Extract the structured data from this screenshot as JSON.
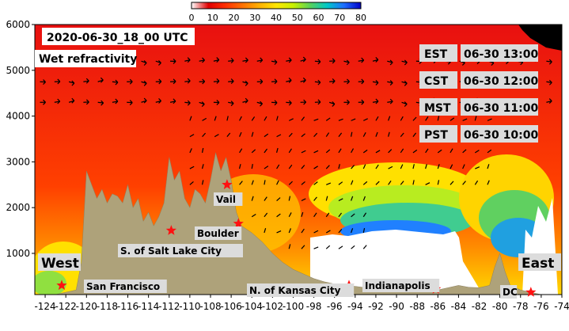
{
  "chart_data": {
    "type": "heatmap",
    "title": "2020-06-30_18_00 UTC",
    "field_label": "Wet refractivity",
    "colorbar": {
      "min": 0,
      "max": 80,
      "ticks": [
        0,
        10,
        20,
        30,
        40,
        50,
        60,
        70,
        80
      ],
      "colors": [
        "#ffffff",
        "#e00000",
        "#ff3000",
        "#ff7000",
        "#ffb000",
        "#ffe600",
        "#c8f000",
        "#5ad25a",
        "#00c8c8",
        "#1e6eff",
        "#0000c8"
      ]
    },
    "x_ticks": [
      -124,
      -122,
      -120,
      -118,
      -116,
      -114,
      -112,
      -110,
      -108,
      -106,
      -104,
      -102,
      -100,
      -98,
      -96,
      -94,
      -92,
      -90,
      -88,
      -86,
      -84,
      -82,
      -80,
      -78,
      -76,
      -74
    ],
    "xlim": [
      -125,
      -74
    ],
    "y_ticks": [
      1000,
      2000,
      3000,
      4000,
      5000,
      6000
    ],
    "ylim": [
      100,
      6000
    ],
    "terrain": {
      "lon": [
        -125,
        -124,
        -123,
        -122,
        -121,
        -120.5,
        -120,
        -119.5,
        -119,
        -118.5,
        -118,
        -117.5,
        -117,
        -116.5,
        -116,
        -115.5,
        -115,
        -114.5,
        -114,
        -113.5,
        -113,
        -112.5,
        -112,
        -111.5,
        -111,
        -110.5,
        -110,
        -109.5,
        -109,
        -108.5,
        -108,
        -107.5,
        -107,
        -106.5,
        -106,
        -105.5,
        -105,
        -104,
        -103,
        -102,
        -101,
        -100,
        -99,
        -98,
        -97,
        -96,
        -95,
        -94,
        -93,
        -92,
        -91,
        -90,
        -89,
        -88,
        -87,
        -86,
        -85,
        -84,
        -83,
        -82,
        -81,
        -80.5,
        -80,
        -79.5,
        -79,
        -78.5,
        -78,
        -77,
        -76,
        -75,
        -74
      ],
      "elev": [
        100,
        100,
        100,
        150,
        200,
        800,
        2800,
        2500,
        2200,
        2400,
        2100,
        2300,
        2250,
        2100,
        2500,
        2000,
        2200,
        1700,
        1900,
        1600,
        1800,
        2100,
        3100,
        2600,
        2800,
        2200,
        2000,
        2400,
        2300,
        2100,
        2600,
        3200,
        2800,
        3100,
        2600,
        1900,
        1600,
        1450,
        1250,
        1000,
        800,
        650,
        550,
        450,
        380,
        330,
        300,
        280,
        250,
        230,
        230,
        210,
        210,
        200,
        190,
        200,
        250,
        300,
        260,
        250,
        300,
        700,
        1000,
        600,
        300,
        250,
        200,
        150,
        100,
        60,
        40
      ]
    },
    "time_zones": [
      {
        "zone": "EST",
        "time": "06-30 13:00"
      },
      {
        "zone": "CST",
        "time": "06-30 12:00"
      },
      {
        "zone": "MST",
        "time": "06-30 11:00"
      },
      {
        "zone": "PST",
        "time": "06-30 10:00"
      }
    ],
    "cities": [
      {
        "name": "San Francisco",
        "lon": -122.4,
        "elev": 300
      },
      {
        "name": "S. of Salt Lake City",
        "lon": -111.8,
        "elev": 1500
      },
      {
        "name": "Boulder",
        "lon": -105.3,
        "elev": 1650
      },
      {
        "name": "Vail",
        "lon": -106.4,
        "elev": 2500
      },
      {
        "name": "N. of Kansas City",
        "lon": -94.6,
        "elev": 300
      },
      {
        "name": "Indianapolis",
        "lon": -86.2,
        "elev": 220
      },
      {
        "name": "DC",
        "lon": -77.0,
        "elev": 150
      }
    ],
    "regions": [
      {
        "name": "West"
      },
      {
        "name": "East"
      }
    ]
  }
}
